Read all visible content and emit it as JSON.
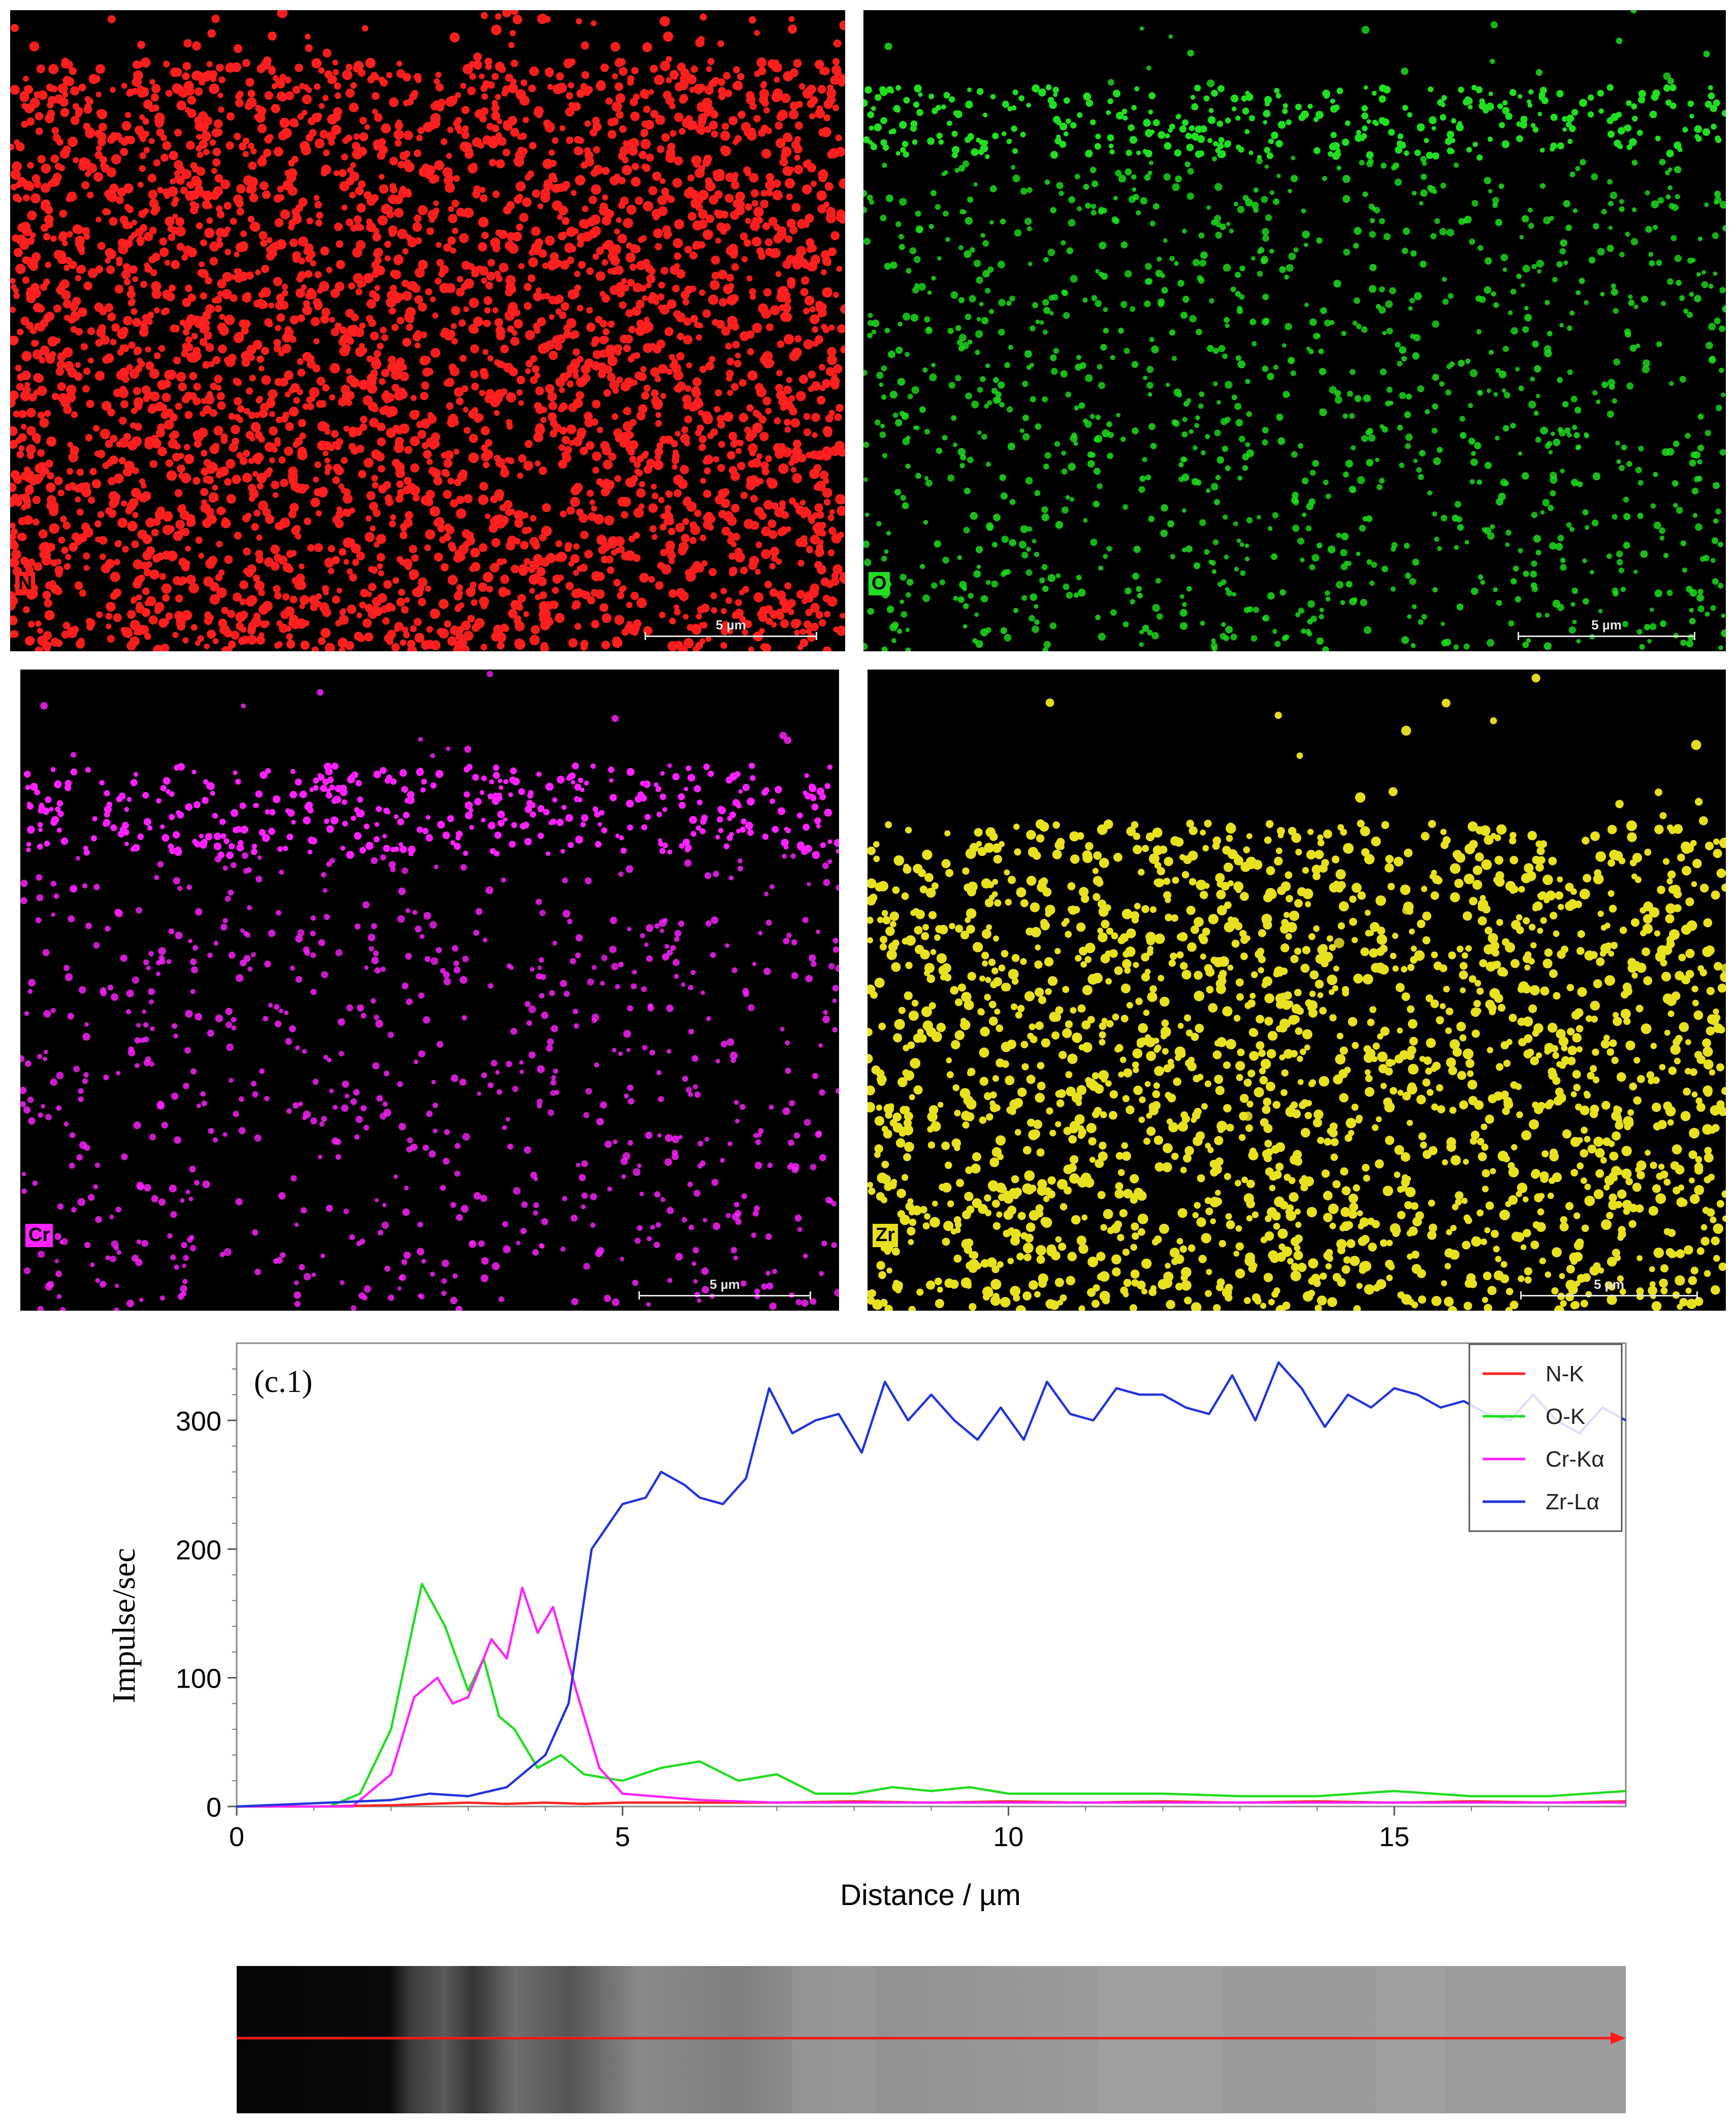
{
  "maps": [
    {
      "element": "N",
      "color": "#ff2020",
      "scale": "5 µm"
    },
    {
      "element": "O",
      "color": "#22dd22",
      "scale": "5 µm"
    },
    {
      "element": "Cr",
      "color": "#ff22ff",
      "scale": "5 µm"
    },
    {
      "element": "Zr",
      "color": "#e8e020",
      "scale": "5 µm"
    }
  ],
  "chart_data": {
    "type": "line",
    "panel_label": "(c.1)",
    "xlabel": "Distance / µm",
    "ylabel": "Impulse/sec",
    "xlim": [
      0,
      18
    ],
    "ylim": [
      0,
      360
    ],
    "xticks": [
      "0",
      "5",
      "10",
      "15"
    ],
    "yticks": [
      "0",
      "100",
      "200",
      "300"
    ],
    "grid": false,
    "legend_position": "top-right",
    "series": [
      {
        "name": "N-K",
        "color": "#ff2020",
        "x": [
          0,
          1,
          2,
          2.5,
          3,
          3.5,
          4,
          4.5,
          5,
          6,
          7,
          8,
          9,
          10,
          11,
          12,
          13,
          14,
          15,
          16,
          17,
          18
        ],
        "y": [
          0,
          0,
          1,
          2,
          3,
          2,
          3,
          2,
          3,
          3,
          3,
          4,
          3,
          4,
          3,
          4,
          3,
          4,
          3,
          4,
          3,
          4
        ]
      },
      {
        "name": "O-K",
        "color": "#22dd22",
        "x": [
          0,
          1.2,
          1.6,
          2.0,
          2.4,
          2.7,
          3.0,
          3.2,
          3.4,
          3.6,
          3.9,
          4.2,
          4.5,
          5.0,
          5.5,
          6.0,
          6.5,
          7.0,
          7.5,
          8.0,
          8.5,
          9.0,
          9.5,
          10.0,
          11.0,
          12.0,
          13.0,
          14.0,
          15.0,
          16.0,
          17.0,
          18.0
        ],
        "y": [
          0,
          0,
          10,
          60,
          173,
          140,
          90,
          115,
          70,
          60,
          30,
          40,
          25,
          20,
          30,
          35,
          20,
          25,
          10,
          10,
          15,
          12,
          15,
          10,
          10,
          10,
          8,
          8,
          12,
          8,
          8,
          12
        ]
      },
      {
        "name": "Cr-Kα",
        "color": "#ff22ff",
        "x": [
          0,
          1.5,
          2.0,
          2.3,
          2.6,
          2.8,
          3.0,
          3.3,
          3.5,
          3.7,
          3.9,
          4.1,
          4.4,
          4.7,
          5.0,
          6.0,
          7.0,
          8.0,
          10.0,
          12.0,
          14.0,
          16.0,
          18.0
        ],
        "y": [
          0,
          0,
          25,
          85,
          100,
          80,
          85,
          130,
          115,
          170,
          135,
          155,
          90,
          30,
          10,
          5,
          3,
          3,
          3,
          3,
          3,
          3,
          3
        ]
      },
      {
        "name": "Zr-Lα",
        "color": "#2233dd",
        "x": [
          0,
          2.0,
          2.5,
          3.0,
          3.5,
          4.0,
          4.3,
          4.6,
          5.0,
          5.3,
          5.5,
          5.8,
          6.0,
          6.3,
          6.6,
          6.9,
          7.2,
          7.5,
          7.8,
          8.1,
          8.4,
          8.7,
          9.0,
          9.3,
          9.6,
          9.9,
          10.2,
          10.5,
          10.8,
          11.1,
          11.4,
          11.7,
          12.0,
          12.3,
          12.6,
          12.9,
          13.2,
          13.5,
          13.8,
          14.1,
          14.4,
          14.7,
          15.0,
          15.3,
          15.6,
          15.9,
          16.2,
          16.5,
          16.8,
          17.1,
          17.4,
          17.7,
          18.0
        ],
        "y": [
          0,
          5,
          10,
          8,
          15,
          40,
          80,
          200,
          235,
          240,
          260,
          250,
          240,
          235,
          255,
          325,
          290,
          300,
          305,
          275,
          330,
          300,
          320,
          300,
          285,
          310,
          285,
          330,
          305,
          300,
          325,
          320,
          320,
          310,
          305,
          335,
          300,
          345,
          325,
          295,
          320,
          310,
          325,
          320,
          310,
          315,
          305,
          300,
          320,
          300,
          290,
          310,
          300
        ]
      }
    ]
  }
}
